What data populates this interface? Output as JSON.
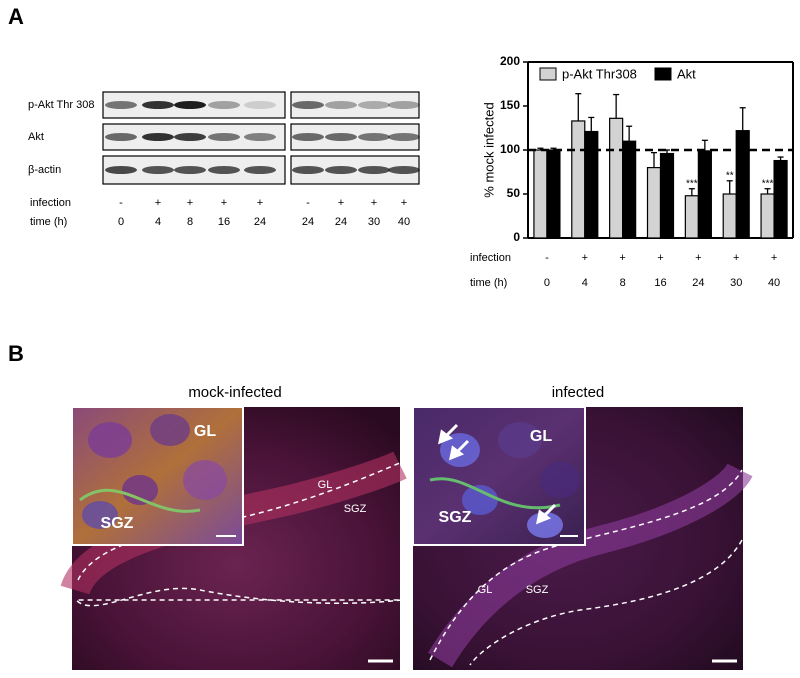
{
  "panel_a": {
    "label": "A"
  },
  "blot": {
    "rows": [
      "p-Akt Thr 308",
      "Akt",
      "β-actin"
    ],
    "infection_label": "infection",
    "time_label": "time (h)",
    "panels": [
      {
        "infection": [
          "-",
          "+",
          "+",
          "+",
          "+"
        ],
        "time": [
          "0",
          "4",
          "8",
          "16",
          "24"
        ]
      },
      {
        "infection": [
          "-",
          "+",
          "+",
          "+"
        ],
        "time": [
          "24",
          "24",
          "30",
          "40"
        ]
      }
    ]
  },
  "chart_data": {
    "type": "bar",
    "y_label": "% mock infected",
    "categories": [
      "0",
      "4",
      "8",
      "16",
      "24",
      "30",
      "40"
    ],
    "infection": [
      "-",
      "+",
      "+",
      "+",
      "+",
      "+",
      "+"
    ],
    "infection_label": "infection",
    "time_label": "time (h)",
    "series": [
      {
        "name": "p-Akt Thr308",
        "color": "#d3d3d3",
        "values": [
          100,
          133,
          136,
          80,
          48,
          50,
          50
        ],
        "errors": [
          2,
          31,
          27,
          17,
          8,
          15,
          6
        ],
        "significance": [
          null,
          null,
          null,
          null,
          "***",
          "**",
          "***"
        ]
      },
      {
        "name": "Akt",
        "color": "#000000",
        "values": [
          100,
          121,
          110,
          96,
          99,
          122,
          88
        ],
        "errors": [
          2,
          16,
          17,
          4,
          12,
          26,
          4
        ],
        "significance": [
          null,
          null,
          null,
          null,
          null,
          null,
          null
        ]
      }
    ],
    "ylim": [
      0,
      200
    ],
    "yticks": [
      0,
      50,
      100,
      150,
      200
    ],
    "reference_line": 100,
    "legend": "top"
  },
  "panel_b": {
    "label": "B",
    "images": [
      {
        "title": "mock-infected",
        "inset_labels": [
          "GL",
          "SGZ"
        ],
        "labels": [
          "GL",
          "SGZ"
        ]
      },
      {
        "title": "infected",
        "inset_labels": [
          "GL",
          "SGZ"
        ],
        "labels": [
          "GL",
          "SGZ"
        ]
      }
    ]
  }
}
